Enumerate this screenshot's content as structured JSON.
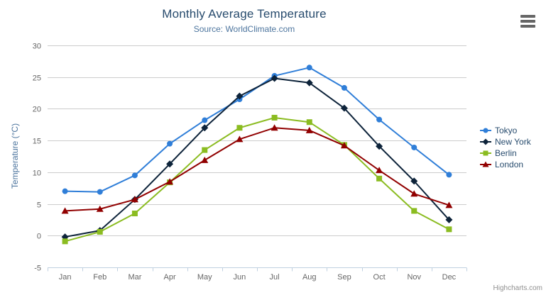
{
  "chart": {
    "title": "Monthly Average Temperature",
    "subtitle": "Source: WorldClimate.com",
    "y_axis_title": "Temperature (°C)",
    "credits": "Highcharts.com"
  },
  "icons": {
    "context_menu": "hamburger-menu"
  },
  "colors": {
    "title": "#274b6d",
    "subtitle": "#4d759e",
    "axis_title": "#4d759e",
    "tick_label": "#666666",
    "grid_line": "#cccccc",
    "axis_line": "#c0d0e0",
    "legend_text": "#274b6d",
    "credits": "#909090",
    "menu_icon": "#666666",
    "background": "#ffffff"
  },
  "chart_data": {
    "type": "line",
    "title": "Monthly Average Temperature",
    "subtitle": "Source: WorldClimate.com",
    "xlabel": "",
    "ylabel": "Temperature (°C)",
    "ylim": [
      -5,
      30
    ],
    "ytick_step": 5,
    "yticks": [
      30,
      25,
      20,
      15,
      10,
      5,
      0,
      -5
    ],
    "grid": true,
    "legend_position": "right-middle",
    "categories": [
      "Jan",
      "Feb",
      "Mar",
      "Apr",
      "May",
      "Jun",
      "Jul",
      "Aug",
      "Sep",
      "Oct",
      "Nov",
      "Dec"
    ],
    "series": [
      {
        "name": "Tokyo",
        "color": "#2f7ed8",
        "marker": "circle",
        "values": [
          7.0,
          6.9,
          9.5,
          14.5,
          18.2,
          21.5,
          25.2,
          26.5,
          23.3,
          18.3,
          13.9,
          9.6
        ]
      },
      {
        "name": "New York",
        "color": "#0d233a",
        "marker": "diamond",
        "values": [
          -0.2,
          0.8,
          5.7,
          11.3,
          17.0,
          22.0,
          24.8,
          24.1,
          20.1,
          14.1,
          8.6,
          2.5
        ]
      },
      {
        "name": "Berlin",
        "color": "#8bbc21",
        "marker": "square",
        "values": [
          -0.9,
          0.6,
          3.5,
          8.4,
          13.5,
          17.0,
          18.6,
          17.9,
          14.3,
          9.0,
          3.9,
          1.0
        ]
      },
      {
        "name": "London",
        "color": "#910000",
        "marker": "triangle",
        "values": [
          3.9,
          4.2,
          5.7,
          8.5,
          11.9,
          15.2,
          17.0,
          16.6,
          14.2,
          10.3,
          6.6,
          4.8
        ]
      }
    ]
  }
}
